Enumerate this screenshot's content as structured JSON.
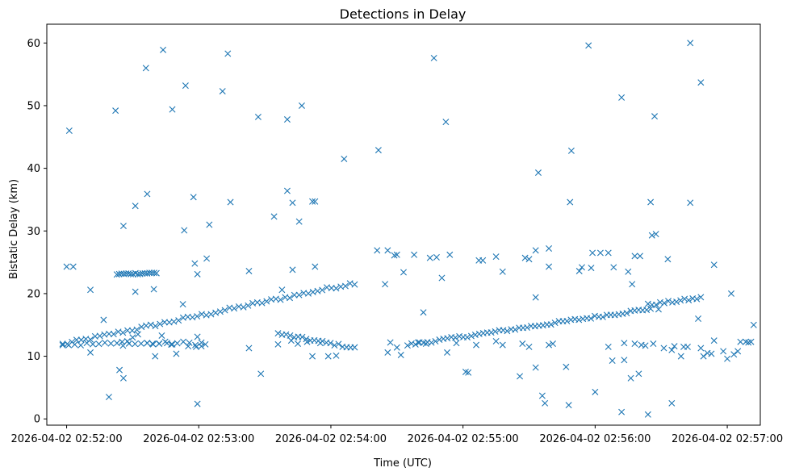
{
  "chart_data": {
    "type": "scatter",
    "title": "Detections in Delay",
    "xlabel": "Time (UTC)",
    "ylabel": "Bistatic Delay (km)",
    "xlim": [
      -0.15,
      5.25
    ],
    "ylim": [
      -1,
      63
    ],
    "x_unit": "minutes since 2026-04-02 02:52:00",
    "xticks": [
      {
        "value": 0,
        "label": "2026-04-02 02:52:00"
      },
      {
        "value": 1,
        "label": "2026-04-02 02:53:00"
      },
      {
        "value": 2,
        "label": "2026-04-02 02:54:00"
      },
      {
        "value": 3,
        "label": "2026-04-02 02:55:00"
      },
      {
        "value": 4,
        "label": "2026-04-02 02:56:00"
      },
      {
        "value": 5,
        "label": "2026-04-02 02:57:00"
      }
    ],
    "yticks": [
      {
        "value": 0,
        "label": "0"
      },
      {
        "value": 10,
        "label": "10"
      },
      {
        "value": 20,
        "label": "20"
      },
      {
        "value": 30,
        "label": "30"
      },
      {
        "value": 40,
        "label": "40"
      },
      {
        "value": 50,
        "label": "50"
      },
      {
        "value": 60,
        "label": "60"
      }
    ],
    "marker": "x",
    "color": "#1f77b4",
    "grid": false,
    "series": [
      {
        "name": "detections",
        "trends": [
          {
            "x_start": -0.03,
            "x_end": 2.18,
            "y_start": 11.9,
            "y_end": 21.7,
            "step": 0.035,
            "jitter": 0.25
          },
          {
            "x_start": -0.03,
            "x_end": 1.02,
            "y_start": 11.9,
            "y_end": 12.1,
            "step": 0.045,
            "jitter": 0.3
          },
          {
            "x_start": 1.6,
            "x_end": 2.18,
            "y_start": 13.6,
            "y_end": 11.3,
            "step": 0.03,
            "jitter": 0.2
          },
          {
            "x_start": 2.58,
            "x_end": 4.42,
            "y_start": 11.8,
            "y_end": 17.6,
            "step": 0.03,
            "jitter": 0.2
          },
          {
            "x_start": 4.4,
            "x_end": 4.8,
            "y_start": 18.2,
            "y_end": 19.3,
            "step": 0.03,
            "jitter": 0.2
          },
          {
            "x_start": 0.38,
            "x_end": 0.68,
            "y_start": 23.1,
            "y_end": 23.3,
            "step": 0.018,
            "jitter": 0.12
          }
        ],
        "points": [
          [
            0.02,
            46.0
          ],
          [
            0.0,
            24.3
          ],
          [
            0.05,
            24.3
          ],
          [
            0.18,
            20.6
          ],
          [
            0.18,
            10.6
          ],
          [
            0.28,
            15.8
          ],
          [
            0.32,
            3.5
          ],
          [
            0.37,
            49.2
          ],
          [
            0.4,
            7.8
          ],
          [
            0.43,
            6.5
          ],
          [
            0.43,
            30.8
          ],
          [
            0.52,
            34.0
          ],
          [
            0.52,
            20.3
          ],
          [
            0.6,
            56.0
          ],
          [
            0.61,
            35.9
          ],
          [
            0.66,
            20.7
          ],
          [
            0.67,
            10.0
          ],
          [
            0.72,
            13.3
          ],
          [
            0.73,
            58.9
          ],
          [
            0.8,
            49.4
          ],
          [
            0.83,
            10.4
          ],
          [
            0.88,
            18.3
          ],
          [
            0.89,
            30.1
          ],
          [
            0.9,
            53.2
          ],
          [
            0.96,
            35.4
          ],
          [
            0.97,
            24.8
          ],
          [
            0.99,
            23.1
          ],
          [
            0.99,
            13.1
          ],
          [
            0.99,
            2.4
          ],
          [
            1.06,
            25.6
          ],
          [
            1.08,
            31.0
          ],
          [
            1.18,
            52.3
          ],
          [
            1.22,
            58.3
          ],
          [
            1.24,
            34.6
          ],
          [
            1.38,
            23.6
          ],
          [
            1.38,
            11.3
          ],
          [
            1.45,
            48.2
          ],
          [
            1.47,
            7.2
          ],
          [
            1.57,
            32.3
          ],
          [
            1.63,
            20.6
          ],
          [
            1.67,
            47.8
          ],
          [
            1.67,
            36.4
          ],
          [
            1.71,
            34.5
          ],
          [
            1.71,
            23.8
          ],
          [
            1.76,
            31.5
          ],
          [
            1.78,
            50.0
          ],
          [
            1.86,
            34.7
          ],
          [
            1.88,
            34.7
          ],
          [
            1.88,
            24.3
          ],
          [
            1.86,
            10.0
          ],
          [
            1.98,
            10.0
          ],
          [
            2.04,
            10.1
          ],
          [
            2.1,
            41.5
          ],
          [
            2.36,
            42.9
          ],
          [
            2.35,
            26.9
          ],
          [
            2.41,
            21.5
          ],
          [
            2.43,
            26.9
          ],
          [
            2.48,
            26.1
          ],
          [
            2.5,
            26.2
          ],
          [
            2.53,
            10.2
          ],
          [
            2.43,
            10.6
          ],
          [
            2.55,
            23.4
          ],
          [
            2.63,
            26.2
          ],
          [
            2.7,
            17.0
          ],
          [
            2.75,
            25.7
          ],
          [
            2.78,
            57.6
          ],
          [
            2.8,
            25.8
          ],
          [
            2.84,
            22.5
          ],
          [
            2.87,
            47.4
          ],
          [
            2.88,
            10.6
          ],
          [
            2.9,
            26.2
          ],
          [
            3.02,
            7.5
          ],
          [
            3.04,
            7.4
          ],
          [
            3.12,
            25.3
          ],
          [
            3.15,
            25.3
          ],
          [
            3.25,
            25.9
          ],
          [
            3.3,
            23.5
          ],
          [
            3.43,
            6.8
          ],
          [
            3.47,
            25.7
          ],
          [
            3.5,
            25.5
          ],
          [
            3.55,
            26.9
          ],
          [
            3.55,
            19.4
          ],
          [
            3.55,
            8.2
          ],
          [
            3.57,
            39.3
          ],
          [
            3.6,
            3.7
          ],
          [
            3.62,
            2.5
          ],
          [
            3.65,
            24.3
          ],
          [
            3.65,
            27.2
          ],
          [
            3.68,
            12.0
          ],
          [
            3.78,
            8.3
          ],
          [
            3.8,
            2.2
          ],
          [
            3.82,
            42.8
          ],
          [
            3.81,
            34.6
          ],
          [
            3.88,
            23.6
          ],
          [
            3.9,
            24.2
          ],
          [
            3.95,
            59.6
          ],
          [
            3.97,
            24.1
          ],
          [
            3.98,
            26.5
          ],
          [
            4.0,
            4.3
          ],
          [
            4.04,
            26.5
          ],
          [
            4.1,
            26.5
          ],
          [
            4.14,
            24.2
          ],
          [
            4.13,
            9.3
          ],
          [
            4.2,
            51.3
          ],
          [
            4.2,
            1.1
          ],
          [
            4.22,
            9.4
          ],
          [
            4.25,
            23.5
          ],
          [
            4.27,
            6.5
          ],
          [
            4.28,
            21.5
          ],
          [
            4.3,
            26.0
          ],
          [
            4.34,
            26.0
          ],
          [
            4.33,
            7.2
          ],
          [
            4.4,
            0.7
          ],
          [
            4.42,
            34.6
          ],
          [
            4.43,
            29.3
          ],
          [
            4.46,
            29.5
          ],
          [
            4.45,
            48.3
          ],
          [
            4.48,
            17.5
          ],
          [
            4.52,
            11.3
          ],
          [
            4.55,
            25.5
          ],
          [
            4.58,
            2.5
          ],
          [
            4.58,
            11.0
          ],
          [
            4.65,
            10.0
          ],
          [
            4.67,
            11.5
          ],
          [
            4.72,
            60.0
          ],
          [
            4.72,
            34.5
          ],
          [
            4.78,
            16.0
          ],
          [
            4.8,
            11.3
          ],
          [
            4.8,
            53.7
          ],
          [
            4.82,
            10.0
          ],
          [
            4.85,
            10.5
          ],
          [
            4.88,
            10.4
          ],
          [
            4.9,
            24.6
          ],
          [
            4.9,
            12.5
          ],
          [
            4.97,
            10.8
          ],
          [
            5.0,
            9.6
          ],
          [
            5.03,
            20.0
          ],
          [
            5.05,
            10.3
          ],
          [
            5.08,
            10.8
          ],
          [
            5.1,
            12.3
          ],
          [
            5.14,
            12.3
          ],
          [
            5.18,
            12.3
          ],
          [
            5.2,
            15.0
          ],
          [
            5.16,
            12.2
          ],
          [
            0.42,
            12.3
          ],
          [
            0.46,
            12.4
          ],
          [
            0.5,
            13.0
          ],
          [
            0.54,
            13.5
          ],
          [
            0.61,
            12.1
          ],
          [
            0.65,
            12.0
          ],
          [
            0.7,
            12.0
          ],
          [
            0.76,
            12.1
          ],
          [
            0.8,
            11.9
          ],
          [
            0.92,
            11.6
          ],
          [
            0.98,
            11.5
          ],
          [
            1.02,
            11.6
          ],
          [
            1.05,
            11.9
          ],
          [
            1.6,
            11.9
          ],
          [
            1.7,
            12.5
          ],
          [
            1.75,
            12.0
          ],
          [
            1.82,
            12.3
          ],
          [
            1.92,
            12.1
          ],
          [
            2.45,
            12.2
          ],
          [
            2.5,
            11.4
          ],
          [
            2.66,
            12.2
          ],
          [
            2.72,
            12.0
          ],
          [
            2.95,
            12.1
          ],
          [
            3.1,
            11.8
          ],
          [
            3.25,
            12.4
          ],
          [
            3.3,
            11.8
          ],
          [
            3.45,
            12.0
          ],
          [
            3.5,
            11.5
          ],
          [
            3.65,
            11.8
          ],
          [
            4.1,
            11.5
          ],
          [
            4.22,
            12.1
          ],
          [
            4.3,
            12.0
          ],
          [
            4.35,
            11.8
          ],
          [
            4.38,
            11.7
          ],
          [
            4.44,
            12.0
          ],
          [
            4.6,
            11.6
          ],
          [
            4.7,
            11.5
          ]
        ]
      }
    ]
  }
}
